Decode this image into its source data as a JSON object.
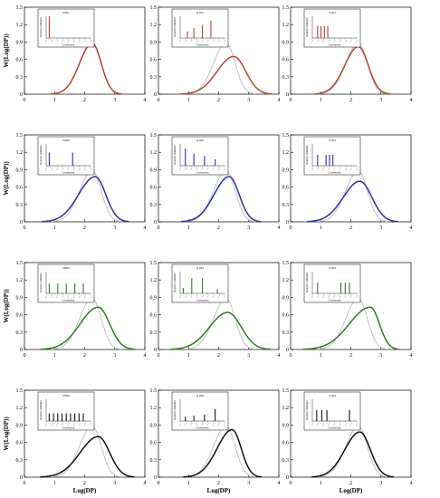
{
  "figure": {
    "ylabel": "W(Log(DP))",
    "xlabel": "Log(DP)",
    "colors": {
      "row1": "#b5452d",
      "row2": "#2b2fb0",
      "row3": "#2e7d1e",
      "row4": "#111111",
      "reference": "#bdbdbd"
    }
  },
  "chart_data": [
    {
      "id": "r1c1",
      "type": "line",
      "row": 1,
      "col": 1,
      "xlim": [
        0,
        4
      ],
      "ylim": [
        0,
        1.5
      ],
      "x_ticks": [
        0,
        1,
        2,
        3,
        4
      ],
      "y_ticks": [
        0,
        0.3,
        0.6,
        0.9,
        1.2,
        1.5
      ],
      "series": [
        {
          "curve": {
            "peak": 0.88,
            "mu": 2.25,
            "left_sigma": 0.42,
            "right_sigma": 0.3
          },
          "color": "row1"
        }
      ],
      "inset": {
        "title": "S0N1",
        "xlabel": "Conversion",
        "ylabel": "Relative Addition",
        "bars": [
          {
            "x": 0.05,
            "h": 1.0
          }
        ]
      }
    },
    {
      "id": "r1c2",
      "type": "line",
      "row": 1,
      "col": 2,
      "xlim": [
        0,
        4
      ],
      "ylim": [
        0,
        1.5
      ],
      "x_ticks": [
        0,
        1,
        2,
        3,
        4
      ],
      "y_ticks": [
        0,
        0.3,
        0.6,
        0.9,
        1.2,
        1.5
      ],
      "series": [
        {
          "curve": {
            "peak": 0.88,
            "mu": 2.25,
            "left_sigma": 0.42,
            "right_sigma": 0.3
          },
          "color": "reference"
        },
        {
          "curve": {
            "peak": 0.65,
            "mu": 2.5,
            "left_sigma": 0.55,
            "right_sigma": 0.4
          },
          "color": "row1"
        }
      ],
      "inset": {
        "title": "A1N1",
        "xlabel": "Conversion",
        "ylabel": "Relative Addition",
        "bars": [
          {
            "x": 0.15,
            "h": 0.3
          },
          {
            "x": 0.3,
            "h": 0.45
          },
          {
            "x": 0.5,
            "h": 0.6
          },
          {
            "x": 0.7,
            "h": 0.8
          }
        ]
      }
    },
    {
      "id": "r1c3",
      "type": "line",
      "row": 1,
      "col": 3,
      "xlim": [
        0,
        4
      ],
      "ylim": [
        0,
        1.5
      ],
      "x_ticks": [
        0,
        1,
        2,
        3,
        4
      ],
      "y_ticks": [
        0,
        0.3,
        0.6,
        0.9,
        1.2,
        1.5
      ],
      "series": [
        {
          "curve": {
            "peak": 0.88,
            "mu": 2.25,
            "left_sigma": 0.42,
            "right_sigma": 0.3
          },
          "color": "reference"
        },
        {
          "curve": {
            "peak": 0.82,
            "mu": 2.25,
            "left_sigma": 0.45,
            "right_sigma": 0.33
          },
          "color": "row1"
        }
      ],
      "inset": {
        "title": "T1N1",
        "xlabel": "Conversion",
        "ylabel": "Relative Addition",
        "bars": [
          {
            "x": 0.1,
            "h": 0.55
          },
          {
            "x": 0.18,
            "h": 0.55
          },
          {
            "x": 0.26,
            "h": 0.55
          },
          {
            "x": 0.34,
            "h": 0.55
          }
        ]
      }
    },
    {
      "id": "r2c1",
      "type": "line",
      "row": 2,
      "col": 1,
      "xlim": [
        0,
        4
      ],
      "ylim": [
        0,
        1.5
      ],
      "x_ticks": [
        0,
        1,
        2,
        3,
        4
      ],
      "y_ticks": [
        0,
        0.3,
        0.6,
        0.9,
        1.2,
        1.5
      ],
      "series": [
        {
          "curve": {
            "peak": 0.88,
            "mu": 2.25,
            "left_sigma": 0.42,
            "right_sigma": 0.3
          },
          "color": "reference"
        },
        {
          "curve": {
            "peak": 0.78,
            "mu": 2.35,
            "left_sigma": 0.55,
            "right_sigma": 0.35
          },
          "color": "row2"
        }
      ],
      "inset": {
        "title": "S0N2",
        "xlabel": "Conversion",
        "ylabel": "Relative Addition",
        "bars": [
          {
            "x": 0.05,
            "h": 0.6
          },
          {
            "x": 0.6,
            "h": 0.6
          }
        ]
      }
    },
    {
      "id": "r2c2",
      "type": "line",
      "row": 2,
      "col": 2,
      "xlim": [
        0,
        4
      ],
      "ylim": [
        0,
        1.5
      ],
      "x_ticks": [
        0,
        1,
        2,
        3,
        4
      ],
      "y_ticks": [
        0,
        0.3,
        0.6,
        0.9,
        1.2,
        1.5
      ],
      "series": [
        {
          "curve": {
            "peak": 0.88,
            "mu": 2.25,
            "left_sigma": 0.42,
            "right_sigma": 0.3
          },
          "color": "reference"
        },
        {
          "curve": {
            "peak": 0.78,
            "mu": 2.35,
            "left_sigma": 0.5,
            "right_sigma": 0.33
          },
          "color": "row2"
        }
      ],
      "inset": {
        "title": "A1N2",
        "xlabel": "Conversion",
        "ylabel": "Relative Addition",
        "bars": [
          {
            "x": 0.1,
            "h": 0.8
          },
          {
            "x": 0.3,
            "h": 0.55
          },
          {
            "x": 0.55,
            "h": 0.45
          },
          {
            "x": 0.8,
            "h": 0.3
          }
        ]
      }
    },
    {
      "id": "r2c3",
      "type": "line",
      "row": 2,
      "col": 3,
      "xlim": [
        0,
        4
      ],
      "ylim": [
        0,
        1.5
      ],
      "x_ticks": [
        0,
        1,
        2,
        3,
        4
      ],
      "y_ticks": [
        0,
        0.3,
        0.6,
        0.9,
        1.2,
        1.5
      ],
      "series": [
        {
          "curve": {
            "peak": 0.88,
            "mu": 2.25,
            "left_sigma": 0.42,
            "right_sigma": 0.3
          },
          "color": "reference"
        },
        {
          "curve": {
            "peak": 0.7,
            "mu": 2.3,
            "left_sigma": 0.55,
            "right_sigma": 0.4
          },
          "color": "row2"
        }
      ],
      "inset": {
        "title": "T1N2",
        "xlabel": "Conversion",
        "ylabel": "Relative Addition",
        "bars": [
          {
            "x": 0.1,
            "h": 0.5
          },
          {
            "x": 0.3,
            "h": 0.5
          },
          {
            "x": 0.38,
            "h": 0.5
          },
          {
            "x": 0.46,
            "h": 0.5
          }
        ]
      }
    },
    {
      "id": "r3c1",
      "type": "line",
      "row": 3,
      "col": 1,
      "xlim": [
        0,
        4
      ],
      "ylim": [
        0,
        1.5
      ],
      "x_ticks": [
        0,
        1,
        2,
        3,
        4
      ],
      "y_ticks": [
        0,
        0.3,
        0.6,
        0.9,
        1.2,
        1.5
      ],
      "series": [
        {
          "curve": {
            "peak": 0.88,
            "mu": 2.25,
            "left_sigma": 0.42,
            "right_sigma": 0.3
          },
          "color": "reference"
        },
        {
          "curve": {
            "peak": 0.73,
            "mu": 2.45,
            "left_sigma": 0.6,
            "right_sigma": 0.38
          },
          "color": "row3"
        }
      ],
      "inset": {
        "title": "S0N3",
        "xlabel": "Conversion",
        "ylabel": "Relative Addition",
        "bars": [
          {
            "x": 0.05,
            "h": 0.45
          },
          {
            "x": 0.25,
            "h": 0.45
          },
          {
            "x": 0.45,
            "h": 0.45
          },
          {
            "x": 0.65,
            "h": 0.45
          },
          {
            "x": 0.85,
            "h": 0.45
          }
        ]
      }
    },
    {
      "id": "r3c2",
      "type": "line",
      "row": 3,
      "col": 2,
      "xlim": [
        0,
        4
      ],
      "ylim": [
        0,
        1.5
      ],
      "x_ticks": [
        0,
        1,
        2,
        3,
        4
      ],
      "y_ticks": [
        0,
        0.3,
        0.6,
        0.9,
        1.2,
        1.5
      ],
      "series": [
        {
          "curve": {
            "peak": 0.88,
            "mu": 2.25,
            "left_sigma": 0.42,
            "right_sigma": 0.3
          },
          "color": "reference"
        },
        {
          "curve": {
            "peak": 0.64,
            "mu": 2.3,
            "left_sigma": 0.6,
            "right_sigma": 0.45
          },
          "color": "row3"
        }
      ],
      "inset": {
        "title": "A1N3",
        "xlabel": "Conversion",
        "ylabel": "Relative Addition",
        "bars": [
          {
            "x": 0.05,
            "h": 0.25
          },
          {
            "x": 0.25,
            "h": 0.7
          },
          {
            "x": 0.5,
            "h": 0.7
          },
          {
            "x": 0.85,
            "h": 0.2
          }
        ]
      }
    },
    {
      "id": "r3c3",
      "type": "line",
      "row": 3,
      "col": 3,
      "xlim": [
        0,
        4
      ],
      "ylim": [
        0,
        1.5
      ],
      "x_ticks": [
        0,
        1,
        2,
        3,
        4
      ],
      "y_ticks": [
        0,
        0.3,
        0.6,
        0.9,
        1.2,
        1.5
      ],
      "series": [
        {
          "curve": {
            "peak": 0.88,
            "mu": 2.25,
            "left_sigma": 0.42,
            "right_sigma": 0.3
          },
          "color": "reference"
        },
        {
          "curve": {
            "peak": 0.73,
            "mu": 2.65,
            "left_sigma": 0.7,
            "right_sigma": 0.3
          },
          "color": "row3"
        }
      ],
      "inset": {
        "title": "T1N3",
        "xlabel": "Conversion",
        "ylabel": "Relative Addition",
        "bars": [
          {
            "x": 0.1,
            "h": 0.5
          },
          {
            "x": 0.65,
            "h": 0.5
          },
          {
            "x": 0.75,
            "h": 0.5
          },
          {
            "x": 0.85,
            "h": 0.5
          }
        ]
      }
    },
    {
      "id": "r4c1",
      "type": "line",
      "row": 4,
      "col": 1,
      "xlim": [
        0,
        4
      ],
      "ylim": [
        0,
        1.5
      ],
      "x_ticks": [
        0,
        1,
        2,
        3,
        4
      ],
      "y_ticks": [
        0,
        0.3,
        0.6,
        0.9,
        1.2,
        1.5
      ],
      "series": [
        {
          "curve": {
            "peak": 0.88,
            "mu": 2.25,
            "left_sigma": 0.42,
            "right_sigma": 0.3
          },
          "color": "reference"
        },
        {
          "curve": {
            "peak": 0.7,
            "mu": 2.45,
            "left_sigma": 0.6,
            "right_sigma": 0.38
          },
          "color": "row4"
        }
      ],
      "inset": {
        "title": "S0N4",
        "xlabel": "Conversion",
        "ylabel": "Relative Addition",
        "bars": [
          {
            "x": 0.05,
            "h": 0.35
          },
          {
            "x": 0.15,
            "h": 0.35
          },
          {
            "x": 0.25,
            "h": 0.35
          },
          {
            "x": 0.35,
            "h": 0.35
          },
          {
            "x": 0.45,
            "h": 0.35
          },
          {
            "x": 0.55,
            "h": 0.35
          },
          {
            "x": 0.65,
            "h": 0.35
          },
          {
            "x": 0.75,
            "h": 0.35
          },
          {
            "x": 0.85,
            "h": 0.35
          }
        ]
      }
    },
    {
      "id": "r4c2",
      "type": "line",
      "row": 4,
      "col": 2,
      "xlim": [
        0,
        4
      ],
      "ylim": [
        0,
        1.5
      ],
      "x_ticks": [
        0,
        1,
        2,
        3,
        4
      ],
      "y_ticks": [
        0,
        0.3,
        0.6,
        0.9,
        1.2,
        1.5
      ],
      "series": [
        {
          "curve": {
            "peak": 0.88,
            "mu": 2.25,
            "left_sigma": 0.42,
            "right_sigma": 0.3
          },
          "color": "reference"
        },
        {
          "curve": {
            "peak": 0.82,
            "mu": 2.45,
            "left_sigma": 0.5,
            "right_sigma": 0.3
          },
          "color": "row4"
        }
      ],
      "inset": {
        "title": "A1N4",
        "xlabel": "Conversion",
        "ylabel": "Relative Addition",
        "bars": [
          {
            "x": 0.1,
            "h": 0.2
          },
          {
            "x": 0.3,
            "h": 0.25
          },
          {
            "x": 0.55,
            "h": 0.3
          },
          {
            "x": 0.8,
            "h": 0.55
          }
        ]
      }
    },
    {
      "id": "r4c3",
      "type": "line",
      "row": 4,
      "col": 3,
      "xlim": [
        0,
        4
      ],
      "ylim": [
        0,
        1.5
      ],
      "x_ticks": [
        0,
        1,
        2,
        3,
        4
      ],
      "y_ticks": [
        0,
        0.3,
        0.6,
        0.9,
        1.2,
        1.5
      ],
      "series": [
        {
          "curve": {
            "peak": 0.88,
            "mu": 2.25,
            "left_sigma": 0.42,
            "right_sigma": 0.3
          },
          "color": "reference"
        },
        {
          "curve": {
            "peak": 0.78,
            "mu": 2.3,
            "left_sigma": 0.5,
            "right_sigma": 0.35
          },
          "color": "row4"
        }
      ],
      "inset": {
        "title": "T1N4",
        "xlabel": "Conversion",
        "ylabel": "Relative Addition",
        "bars": [
          {
            "x": 0.08,
            "h": 0.5
          },
          {
            "x": 0.2,
            "h": 0.5
          },
          {
            "x": 0.32,
            "h": 0.5
          },
          {
            "x": 0.85,
            "h": 0.5
          }
        ]
      }
    }
  ]
}
